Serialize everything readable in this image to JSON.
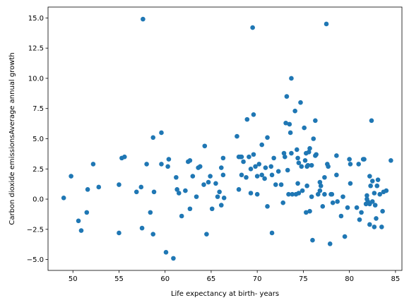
{
  "chart_data": {
    "type": "scatter",
    "title": "",
    "xlabel": "Life expectancy at birth- years",
    "ylabel": "Carbon dioxide emissionsAverage annual growth",
    "xlim": [
      47.3,
      85.7
    ],
    "ylim": [
      -5.9,
      15.9
    ],
    "xticks": [
      50,
      55,
      60,
      65,
      70,
      75,
      80,
      85
    ],
    "yticks": [
      -5.0,
      -2.5,
      0.0,
      2.5,
      5.0,
      7.5,
      10.0,
      12.5,
      15.0
    ],
    "xtick_labels": [
      "50",
      "55",
      "60",
      "65",
      "70",
      "75",
      "80",
      "85"
    ],
    "ytick_labels": [
      "−5.0",
      "−2.5",
      "0.0",
      "2.5",
      "5.0",
      "7.5",
      "10.0",
      "12.5",
      "15.0"
    ],
    "grid": false,
    "legend": "none",
    "color": "#1f77b4",
    "points": [
      [
        49.0,
        0.1
      ],
      [
        49.8,
        1.9
      ],
      [
        50.6,
        -1.8
      ],
      [
        50.9,
        -2.6
      ],
      [
        51.5,
        -1.1
      ],
      [
        51.6,
        0.8
      ],
      [
        52.2,
        2.9
      ],
      [
        52.8,
        1.0
      ],
      [
        55.0,
        1.2
      ],
      [
        55.0,
        -2.8
      ],
      [
        55.3,
        3.4
      ],
      [
        55.6,
        3.5
      ],
      [
        56.9,
        0.6
      ],
      [
        57.4,
        1.0
      ],
      [
        57.5,
        -2.4
      ],
      [
        57.6,
        14.9
      ],
      [
        58.0,
        2.9
      ],
      [
        58.4,
        -1.1
      ],
      [
        58.7,
        5.1
      ],
      [
        58.8,
        0.6
      ],
      [
        58.7,
        -2.9
      ],
      [
        59.6,
        5.5
      ],
      [
        59.6,
        2.9
      ],
      [
        60.1,
        -4.4
      ],
      [
        60.3,
        2.7
      ],
      [
        60.4,
        3.3
      ],
      [
        60.9,
        -4.9
      ],
      [
        61.2,
        1.8
      ],
      [
        61.3,
        0.8
      ],
      [
        61.5,
        0.5
      ],
      [
        61.8,
        -1.4
      ],
      [
        62.2,
        0.7
      ],
      [
        62.5,
        3.1
      ],
      [
        62.7,
        -0.8
      ],
      [
        62.7,
        3.2
      ],
      [
        63.0,
        1.9
      ],
      [
        63.4,
        0.2
      ],
      [
        63.6,
        2.6
      ],
      [
        63.8,
        2.7
      ],
      [
        64.2,
        1.2
      ],
      [
        64.3,
        4.4
      ],
      [
        64.5,
        -2.9
      ],
      [
        64.7,
        1.4
      ],
      [
        64.9,
        1.9
      ],
      [
        65.1,
        -0.8
      ],
      [
        65.5,
        1.3
      ],
      [
        65.7,
        0.2
      ],
      [
        65.9,
        0.6
      ],
      [
        66.1,
        2.6
      ],
      [
        66.1,
        -0.5
      ],
      [
        66.3,
        3.4
      ],
      [
        66.3,
        2.0
      ],
      [
        66.4,
        0.1
      ],
      [
        67.8,
        5.2
      ],
      [
        68.0,
        3.5
      ],
      [
        68.0,
        0.8
      ],
      [
        68.2,
        3.5
      ],
      [
        68.3,
        3.5
      ],
      [
        68.3,
        2.0
      ],
      [
        68.5,
        3.1
      ],
      [
        68.8,
        1.8
      ],
      [
        68.9,
        6.6
      ],
      [
        69.1,
        3.5
      ],
      [
        69.3,
        0.5
      ],
      [
        69.3,
        2.5
      ],
      [
        69.5,
        14.2
      ],
      [
        69.6,
        3.7
      ],
      [
        69.6,
        7.0
      ],
      [
        69.8,
        2.7
      ],
      [
        70.0,
        0.4
      ],
      [
        70.0,
        1.9
      ],
      [
        70.2,
        2.9
      ],
      [
        70.5,
        2.0
      ],
      [
        70.5,
        4.5
      ],
      [
        70.8,
        1.7
      ],
      [
        70.9,
        2.6
      ],
      [
        71.1,
        5.1
      ],
      [
        71.1,
        -0.6
      ],
      [
        71.5,
        2.7
      ],
      [
        71.6,
        -2.8
      ],
      [
        71.6,
        2.0
      ],
      [
        71.8,
        3.4
      ],
      [
        72.0,
        1.2
      ],
      [
        72.3,
        2.3
      ],
      [
        72.6,
        1.2
      ],
      [
        72.8,
        -0.3
      ],
      [
        72.9,
        3.8
      ],
      [
        73.0,
        3.5
      ],
      [
        73.1,
        6.3
      ],
      [
        73.2,
        8.5
      ],
      [
        73.3,
        2.4
      ],
      [
        73.4,
        0.4
      ],
      [
        73.5,
        6.2
      ],
      [
        73.6,
        5.5
      ],
      [
        73.7,
        3.8
      ],
      [
        73.7,
        10.0
      ],
      [
        73.8,
        0.4
      ],
      [
        74.1,
        7.3
      ],
      [
        74.2,
        0.4
      ],
      [
        74.3,
        4.1
      ],
      [
        74.4,
        1.3
      ],
      [
        74.4,
        3.4
      ],
      [
        74.5,
        3.0
      ],
      [
        74.5,
        0.5
      ],
      [
        74.7,
        8.0
      ],
      [
        74.8,
        2.7
      ],
      [
        74.9,
        0.7
      ],
      [
        75.1,
        5.9
      ],
      [
        75.2,
        3.2
      ],
      [
        75.3,
        -1.1
      ],
      [
        75.3,
        3.8
      ],
      [
        75.4,
        1.1
      ],
      [
        75.4,
        2.7
      ],
      [
        75.5,
        2.8
      ],
      [
        75.6,
        3.9
      ],
      [
        75.7,
        -1.0
      ],
      [
        75.7,
        4.2
      ],
      [
        75.9,
        2.8
      ],
      [
        75.9,
        0.2
      ],
      [
        76.0,
        -3.4
      ],
      [
        76.1,
        5.0
      ],
      [
        76.3,
        6.5
      ],
      [
        76.3,
        3.6
      ],
      [
        76.4,
        3.7
      ],
      [
        76.6,
        0.4
      ],
      [
        76.8,
        1.4
      ],
      [
        76.8,
        0.7
      ],
      [
        76.9,
        1.1
      ],
      [
        77.1,
        -0.6
      ],
      [
        77.3,
        0.4
      ],
      [
        77.3,
        1.8
      ],
      [
        77.5,
        14.5
      ],
      [
        77.6,
        2.9
      ],
      [
        77.7,
        2.7
      ],
      [
        77.9,
        -3.7
      ],
      [
        78.0,
        0.4
      ],
      [
        78.1,
        0.4
      ],
      [
        78.2,
        -0.3
      ],
      [
        78.6,
        3.6
      ],
      [
        78.6,
        2.0
      ],
      [
        78.7,
        -0.2
      ],
      [
        79.1,
        -1.4
      ],
      [
        79.3,
        0.2
      ],
      [
        79.5,
        -3.1
      ],
      [
        79.8,
        -0.7
      ],
      [
        80.0,
        3.3
      ],
      [
        80.1,
        2.9
      ],
      [
        80.1,
        1.3
      ],
      [
        80.8,
        -0.7
      ],
      [
        81.0,
        2.9
      ],
      [
        81.1,
        -1.7
      ],
      [
        81.3,
        -1.1
      ],
      [
        81.5,
        3.3
      ],
      [
        81.6,
        3.3
      ],
      [
        81.8,
        -0.4
      ],
      [
        81.9,
        0.3
      ],
      [
        81.9,
        0.0
      ],
      [
        82.0,
        -0.2
      ],
      [
        82.2,
        -0.4
      ],
      [
        82.2,
        -2.1
      ],
      [
        82.2,
        1.9
      ],
      [
        82.3,
        1.1
      ],
      [
        82.4,
        6.5
      ],
      [
        82.5,
        -0.2
      ],
      [
        82.5,
        1.5
      ],
      [
        82.7,
        0.5
      ],
      [
        82.7,
        -2.3
      ],
      [
        82.8,
        -0.5
      ],
      [
        82.9,
        -1.6
      ],
      [
        83.0,
        1.1
      ],
      [
        83.1,
        1.6
      ],
      [
        83.3,
        0.4
      ],
      [
        83.5,
        -2.3
      ],
      [
        83.6,
        -1.0
      ],
      [
        83.7,
        0.6
      ],
      [
        84.0,
        0.7
      ],
      [
        84.5,
        3.2
      ]
    ]
  }
}
